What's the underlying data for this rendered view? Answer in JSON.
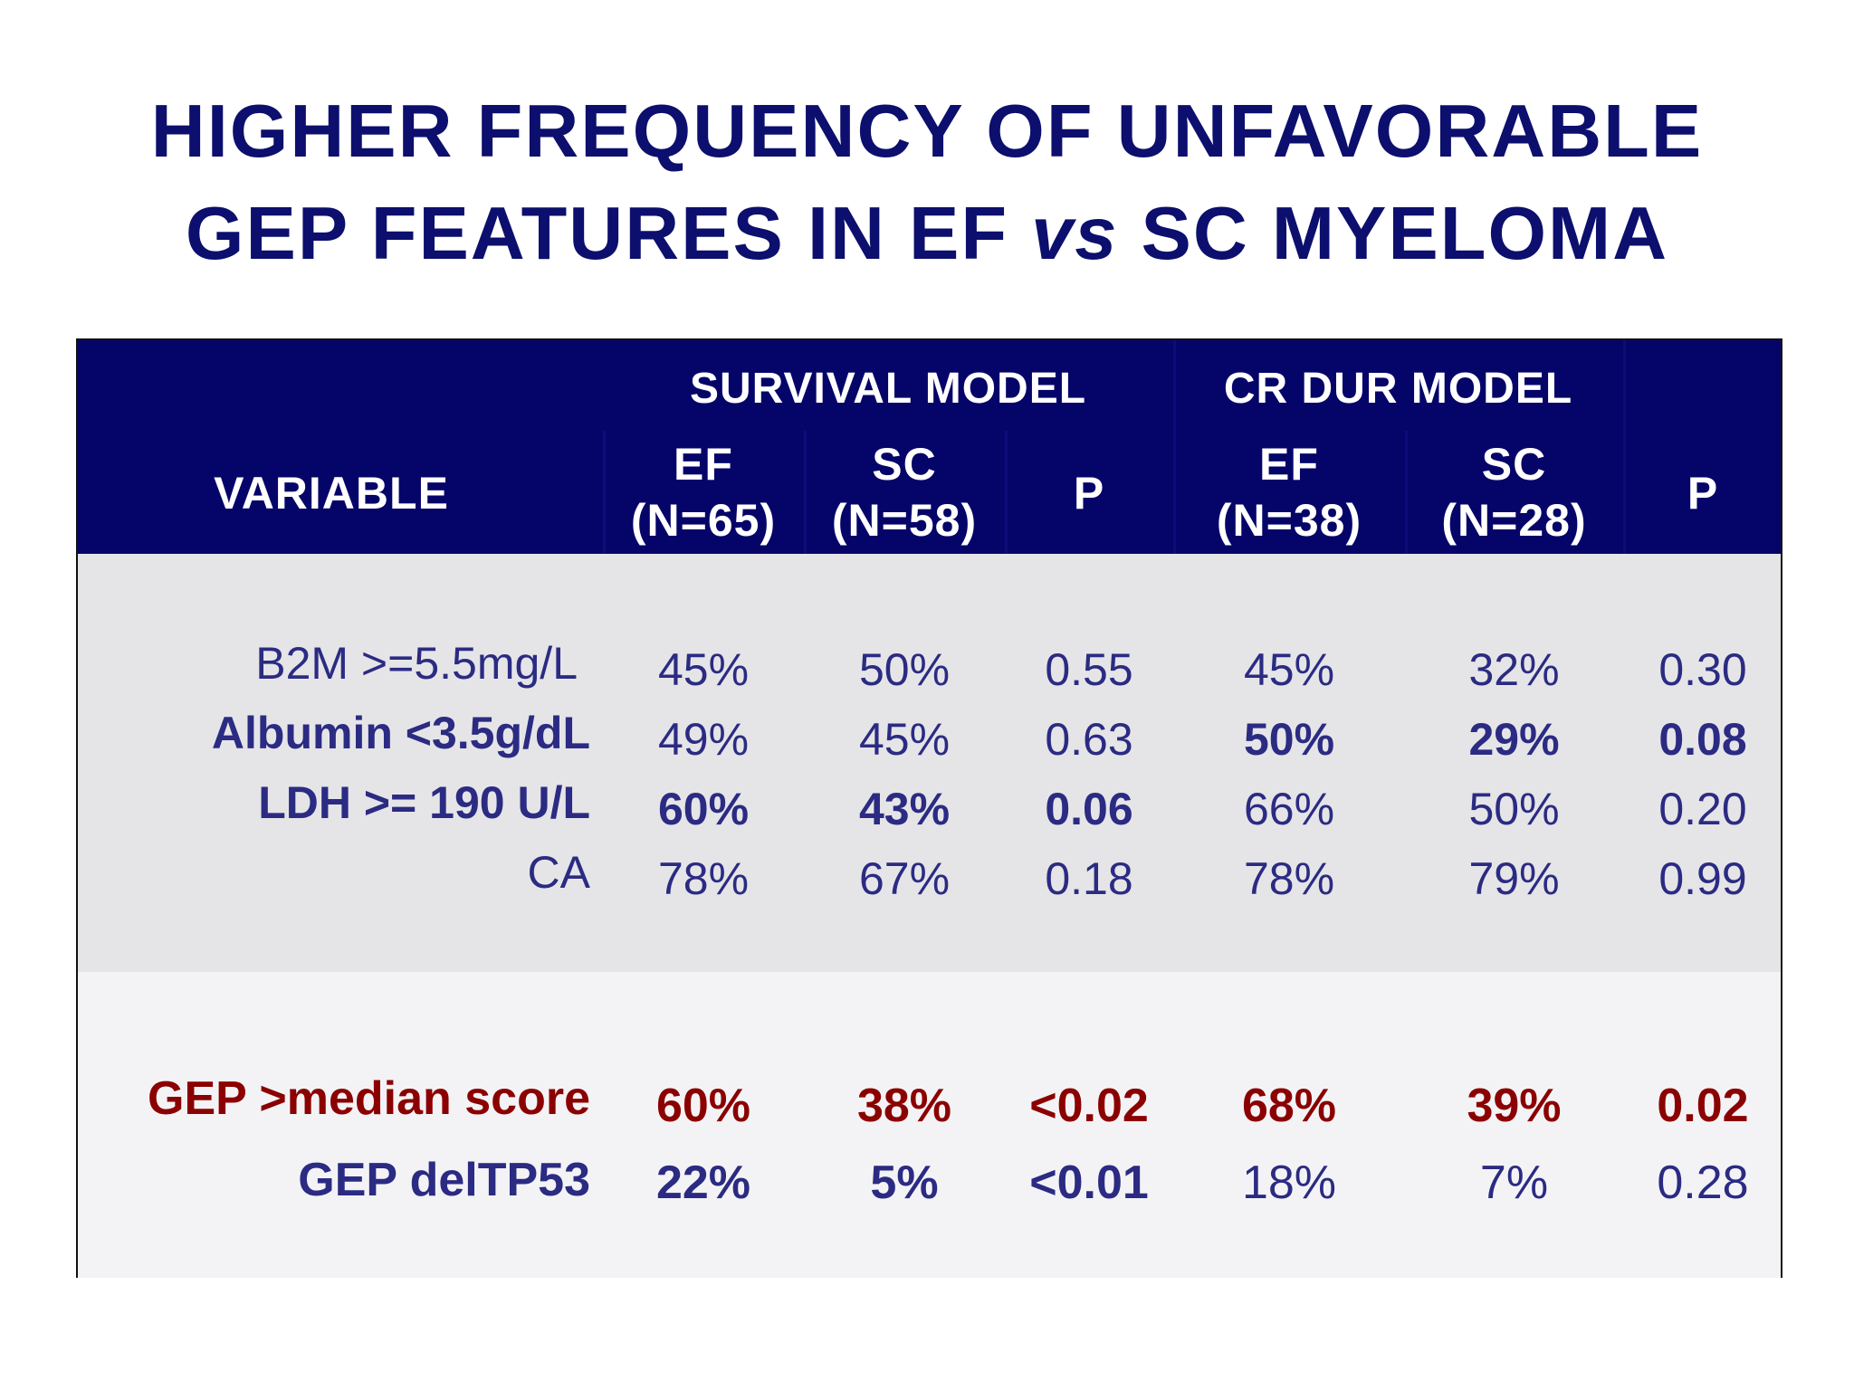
{
  "title": {
    "line1": "HIGHER FREQUENCY OF UNFAVORABLE",
    "line2_start": "GEP FEATURES IN EF ",
    "line2_italic": "vs",
    "line2_end": " SC MYELOMA"
  },
  "table": {
    "groups": {
      "survival": "SURVIVAL MODEL",
      "crdur": "CR DUR MODEL"
    },
    "columns": {
      "variable": "VARIABLE",
      "s_ef": {
        "name": "EF",
        "n": "(N=65)"
      },
      "s_sc": {
        "name": "SC",
        "n": "(N=58)"
      },
      "s_p": "P",
      "c_ef": {
        "name": "EF",
        "n": "(N=38)"
      },
      "c_sc": {
        "name": "SC",
        "n": "(N=28)"
      },
      "c_p": "P"
    },
    "rows": [
      {
        "label": "B2M >=5.5mg/L",
        "s_ef": "45%",
        "s_sc": "50%",
        "s_p": "0.55",
        "c_ef": "45%",
        "c_sc": "32%",
        "c_p": "0.30"
      },
      {
        "label": "Albumin <3.5g/dL",
        "s_ef": "49%",
        "s_sc": "45%",
        "s_p": "0.63",
        "c_ef": "50%",
        "c_sc": "29%",
        "c_p": "0.08"
      },
      {
        "label": "LDH >= 190 U/L",
        "s_ef": "60%",
        "s_sc": "43%",
        "s_p": "0.06",
        "c_ef": "66%",
        "c_sc": "50%",
        "c_p": "0.20"
      },
      {
        "label": "CA",
        "s_ef": "78%",
        "s_sc": "67%",
        "s_p": "0.18",
        "c_ef": "78%",
        "c_sc": "79%",
        "c_p": "0.99"
      },
      {
        "label": "GEP >median score",
        "s_ef": "60%",
        "s_sc": "38%",
        "s_p": "<0.02",
        "c_ef": "68%",
        "c_sc": "39%",
        "c_p": "0.02"
      },
      {
        "label": "GEP delTP53",
        "s_ef": "22%",
        "s_sc": "5%",
        "s_p": "<0.01",
        "c_ef": "18%",
        "c_sc": "7%",
        "c_p": "0.28"
      }
    ]
  },
  "colors": {
    "title": "#0c0f6d",
    "header_bg": "#050569",
    "header_text": "#ffffff",
    "body_text": "#2b2b83",
    "highlight": "#8b0000"
  }
}
